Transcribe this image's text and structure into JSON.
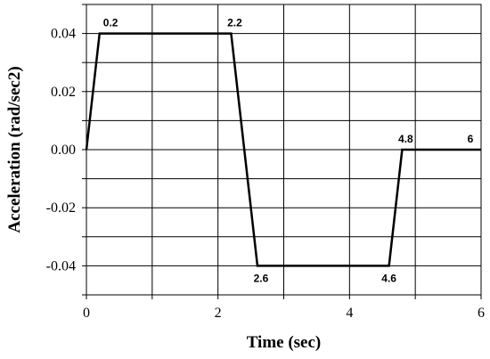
{
  "chart_data": {
    "type": "line",
    "title": "",
    "xlabel": "Time (sec)",
    "ylabel": "Acceleration (rad/sec2)",
    "xlim": [
      0,
      6
    ],
    "ylim": [
      -0.05,
      0.05
    ],
    "grid": true,
    "x_ticks": [
      0,
      1,
      2,
      3,
      4,
      5,
      6
    ],
    "x_tick_labels": [
      "0",
      "",
      "2",
      "",
      "4",
      "",
      "6"
    ],
    "y_ticks": [
      0.05,
      0.04,
      0.03,
      0.02,
      0.01,
      0.0,
      -0.01,
      -0.02,
      -0.03,
      -0.04,
      -0.05
    ],
    "y_tick_labels": [
      "",
      "0.04",
      "",
      "0.02",
      "",
      "0.00",
      "",
      "-0.02",
      "",
      "-0.04",
      ""
    ],
    "series": [
      {
        "color": "#000000",
        "x": [
          0,
          0.2,
          2.2,
          2.6,
          4.6,
          4.8,
          6
        ],
        "y": [
          0.0,
          0.04,
          0.04,
          -0.04,
          -0.04,
          0.0,
          0.0
        ]
      }
    ],
    "annotations": [
      {
        "text": "0.2",
        "x": 0.2,
        "y": 0.04,
        "anchor": "above-right"
      },
      {
        "text": "2.2",
        "x": 2.2,
        "y": 0.04,
        "anchor": "above"
      },
      {
        "text": "2.6",
        "x": 2.6,
        "y": -0.04,
        "anchor": "below"
      },
      {
        "text": "4.6",
        "x": 4.6,
        "y": -0.04,
        "anchor": "below-left"
      },
      {
        "text": "4.8",
        "x": 4.8,
        "y": 0.0,
        "anchor": "above"
      },
      {
        "text": "6",
        "x": 6,
        "y": 0.0,
        "anchor": "above-left"
      }
    ]
  }
}
